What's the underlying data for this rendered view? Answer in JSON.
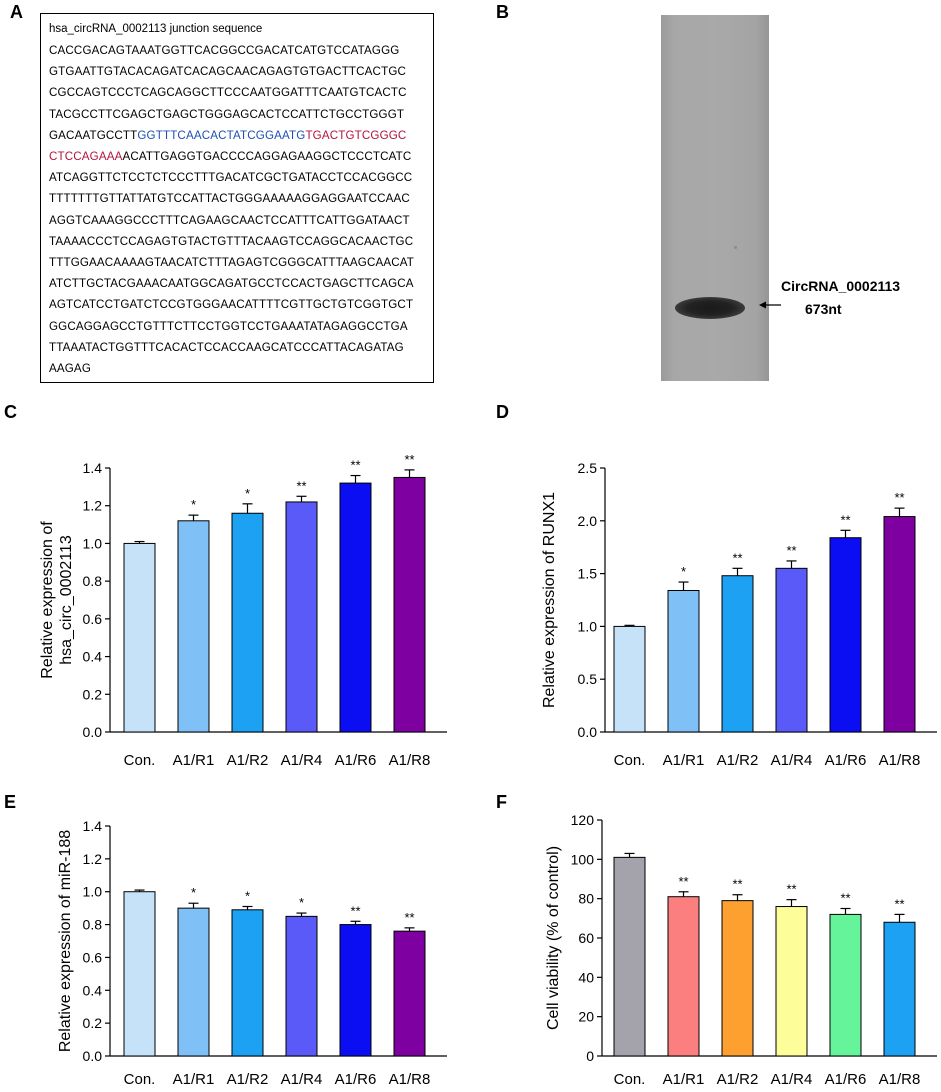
{
  "panels": {
    "a": "A",
    "b": "B",
    "c": "C",
    "d": "D",
    "e": "E",
    "f": "F"
  },
  "sequence": {
    "title": "hsa_circRNA_0002113 junction sequence",
    "colors": {
      "blue": "#1f4fb5",
      "red": "#b3143c"
    },
    "lines": [
      [
        {
          "t": "CACCGACAGTAAATGGTTCACGGCCGACATCATGTCCATAGGG",
          "c": ""
        }
      ],
      [
        {
          "t": "GTGAATTGTACACAGATCACAGCAACAGAGTGTGACTTCACTGC",
          "c": ""
        }
      ],
      [
        {
          "t": "CGCCAGTCCCTCAGCAGGCTTCCCAATGGATTTCAATGTCACTC",
          "c": ""
        }
      ],
      [
        {
          "t": "TACGCCTTCGAGCTGAGCTGGGAGCACTCCATTCTGCCTGGGT",
          "c": ""
        }
      ],
      [
        {
          "t": "GACAATGCCTT",
          "c": ""
        },
        {
          "t": "GGTTTCAACACTATCGGAATG",
          "c": "blue"
        },
        {
          "t": "TGACTGTCGGGC",
          "c": "red"
        }
      ],
      [
        {
          "t": "CTCCAGAAA",
          "c": "red"
        },
        {
          "t": "ACATTGAGGTGACCCCAGGAGAAGGCTCCCTCATC",
          "c": ""
        }
      ],
      [
        {
          "t": "ATCAGGTTCTCCTCTCCCTTTGACATCGCTGATACCTCCACGGCC",
          "c": ""
        }
      ],
      [
        {
          "t": "TTTTTTTGTTATTATGTCCATTACTGGGAAAAAGGAGGAATCCAAC",
          "c": ""
        }
      ],
      [
        {
          "t": "AGGTCAAAGGCCCTTTCAGAAGCAACTCCATTTCATTGGATAACT",
          "c": ""
        }
      ],
      [
        {
          "t": "TAAAACCCTCCAGAGTGTACTGTTTACAAGTCCAGGCACAACTGC",
          "c": ""
        }
      ],
      [
        {
          "t": "TTTGGAACAAAAGTAACATCTTTAGAGTCGGGCATTTAAGCAACAT",
          "c": ""
        }
      ],
      [
        {
          "t": "ATCTTGCTACGAAACAATGGCAGATGCCTCCACTGAGCTTCAGCA",
          "c": ""
        }
      ],
      [
        {
          "t": "AGTCATCCTGATCTCCGTGGGAACATTTTCGTTGCTGTCGGTGCT",
          "c": ""
        }
      ],
      [
        {
          "t": "GGCAGGAGCCTGTTTCTTCCTGGTCCTGAAATATAGAGGCCTGA",
          "c": ""
        }
      ],
      [
        {
          "t": "TTAAATACTGGTTTCACACTCCACCAAGCATCCCATTACAGATAG",
          "c": ""
        }
      ],
      [
        {
          "t": "AAGAG",
          "c": ""
        }
      ]
    ]
  },
  "gel": {
    "band_label": "CircRNA_0002113",
    "size_label": "673nt"
  },
  "chart_data": [
    {
      "id": "C",
      "type": "bar",
      "categories": [
        "Con.",
        "A1/R1",
        "A1/R2",
        "A1/R4",
        "A1/R6",
        "A1/R8"
      ],
      "values": [
        1.0,
        1.12,
        1.16,
        1.22,
        1.32,
        1.35
      ],
      "errors": [
        0.01,
        0.03,
        0.05,
        0.03,
        0.04,
        0.04
      ],
      "significance": [
        "",
        "*",
        "*",
        "**",
        "**",
        "**"
      ],
      "colors": [
        "#c6e2f8",
        "#7fc0f7",
        "#1da1f2",
        "#5a5af8",
        "#0b0ef2",
        "#7f00a0"
      ],
      "ylabel": [
        "Relative  expression of",
        "hsa_circ_0002113"
      ],
      "ylim": [
        0,
        1.4
      ],
      "yticks": [
        0.0,
        0.2,
        0.4,
        0.6,
        0.8,
        1.0,
        1.2,
        1.4
      ],
      "ytick_labels": [
        "0.0",
        "0.2",
        "0.4",
        "0.6",
        "0.8",
        "1.0",
        "1.2",
        "1.4"
      ]
    },
    {
      "id": "D",
      "type": "bar",
      "categories": [
        "Con.",
        "A1/R1",
        "A1/R2",
        "A1/R4",
        "A1/R6",
        "A1/R8"
      ],
      "values": [
        1.0,
        1.34,
        1.48,
        1.55,
        1.84,
        2.04
      ],
      "errors": [
        0.01,
        0.08,
        0.07,
        0.07,
        0.07,
        0.08
      ],
      "significance": [
        "",
        "*",
        "**",
        "**",
        "**",
        "**"
      ],
      "colors": [
        "#c6e2f8",
        "#7fc0f7",
        "#1da1f2",
        "#5a5af8",
        "#0b0ef2",
        "#7f00a0"
      ],
      "ylabel": [
        "Relative  expression of RUNX1"
      ],
      "ylim": [
        0,
        2.5
      ],
      "yticks": [
        0.0,
        0.5,
        1.0,
        1.5,
        2.0,
        2.5
      ],
      "ytick_labels": [
        "0.0",
        "0.5",
        "1.0",
        "1.5",
        "2.0",
        "2.5"
      ]
    },
    {
      "id": "E",
      "type": "bar",
      "categories": [
        "Con.",
        "A1/R1",
        "A1/R2",
        "A1/R4",
        "A1/R6",
        "A1/R8"
      ],
      "values": [
        1.0,
        0.9,
        0.89,
        0.85,
        0.8,
        0.76
      ],
      "errors": [
        0.01,
        0.03,
        0.02,
        0.02,
        0.02,
        0.02
      ],
      "significance": [
        "",
        "*",
        "*",
        "*",
        "**",
        "**"
      ],
      "colors": [
        "#c6e2f8",
        "#7fc0f7",
        "#1da1f2",
        "#5a5af8",
        "#0b0ef2",
        "#7f00a0"
      ],
      "ylabel": [
        "Relative  expression of miR-188"
      ],
      "ylim": [
        0,
        1.4
      ],
      "yticks": [
        0.0,
        0.2,
        0.4,
        0.6,
        0.8,
        1.0,
        1.2,
        1.4
      ],
      "ytick_labels": [
        "0.0",
        "0.2",
        "0.4",
        "0.6",
        "0.8",
        "1.0",
        "1.2",
        "1.4"
      ]
    },
    {
      "id": "F",
      "type": "bar",
      "categories": [
        "Con.",
        "A1/R1",
        "A1/R2",
        "A1/R4",
        "A1/R6",
        "A1/R8"
      ],
      "values": [
        101,
        81,
        79,
        76,
        72,
        68
      ],
      "errors": [
        2,
        2.5,
        3,
        3.5,
        3,
        4
      ],
      "significance": [
        "",
        "**",
        "**",
        "**",
        "**",
        "**"
      ],
      "colors": [
        "#a4a3ab",
        "#fc7f80",
        "#fda030",
        "#fdfd99",
        "#65f49a",
        "#1da1f2"
      ],
      "ylabel": [
        "Cell viability  (% of control)"
      ],
      "ylim": [
        0,
        120
      ],
      "yticks": [
        0,
        20,
        40,
        60,
        80,
        100,
        120
      ],
      "ytick_labels": [
        "0",
        "20",
        "40",
        "60",
        "80",
        "100",
        "120"
      ]
    }
  ]
}
